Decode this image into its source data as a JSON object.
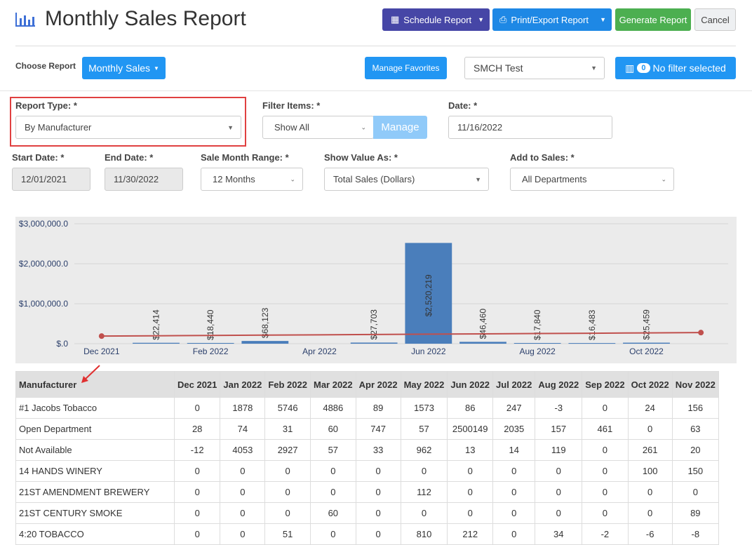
{
  "header": {
    "title": "Monthly Sales Report",
    "buttons": {
      "schedule": "Schedule Report",
      "print": "Print/Export Report",
      "generate": "Generate Report",
      "cancel": "Cancel"
    }
  },
  "toolbar": {
    "choose_label": "Choose Report",
    "report": "Monthly Sales",
    "favorites": "Manage Favorites",
    "store": "SMCH Test",
    "filter_count": "0",
    "filter_text": "No filter selected"
  },
  "filters": {
    "report_type": {
      "label": "Report Type: *",
      "value": "By Manufacturer"
    },
    "filter_items": {
      "label": "Filter Items: *",
      "value": "Show All",
      "button": "Manage"
    },
    "date": {
      "label": "Date: *",
      "value": "11/16/2022"
    },
    "start_date": {
      "label": "Start Date: *",
      "value": "12/01/2021"
    },
    "end_date": {
      "label": "End Date: *",
      "value": "11/30/2022"
    },
    "month_range": {
      "label": "Sale Month Range: *",
      "value": "12 Months"
    },
    "show_value": {
      "label": "Show Value As: *",
      "value": "Total Sales (Dollars)"
    },
    "add_to_sales": {
      "label": "Add to Sales: *",
      "value": "All Departments"
    }
  },
  "chart_data": {
    "type": "bar",
    "categories": [
      "Dec 2021",
      null,
      "Feb 2022",
      null,
      "Apr 2022",
      null,
      "Jun 2022",
      null,
      "Aug 2022",
      null,
      "Oct 2022",
      null
    ],
    "values": [
      null,
      22414,
      18440,
      68123,
      null,
      27703,
      2520219,
      46460,
      17840,
      16483,
      25459,
      null
    ],
    "value_labels": [
      null,
      "$22,414",
      "$18,440",
      "$68,123",
      null,
      "$27,703",
      "$2,520,219",
      "$46,460",
      "$17,840",
      "$16,483",
      "$25,459",
      null
    ],
    "color": "#4a7ebb",
    "trend": {
      "color": "#c0504d",
      "values": [
        190000,
        198000,
        206000,
        214000,
        222000,
        230000,
        238000,
        246000,
        254000,
        262000,
        270000,
        278000
      ]
    },
    "ylim": [
      0,
      3000000
    ],
    "yticks": [
      {
        "value": 0,
        "label": "$.0"
      },
      {
        "value": 1000000,
        "label": "$1,000,000.0"
      },
      {
        "value": 2000000,
        "label": "$2,000,000.0"
      },
      {
        "value": 3000000,
        "label": "$3,000,000.0"
      }
    ],
    "grid": true
  },
  "table": {
    "columns": [
      "Manufacturer",
      "Dec 2021",
      "Jan 2022",
      "Feb 2022",
      "Mar 2022",
      "Apr 2022",
      "May 2022",
      "Jun 2022",
      "Jul 2022",
      "Aug 2022",
      "Sep 2022",
      "Oct 2022",
      "Nov 2022"
    ],
    "rows": [
      [
        "#1 Jacobs Tobacco",
        0,
        1878,
        5746,
        4886,
        89,
        1573,
        86,
        247,
        -3,
        0,
        24,
        156
      ],
      [
        "Open Department",
        28,
        74,
        31,
        60,
        747,
        57,
        2500149,
        2035,
        157,
        461,
        0,
        63
      ],
      [
        "Not Available",
        -12,
        4053,
        2927,
        57,
        33,
        962,
        13,
        14,
        119,
        0,
        261,
        20
      ],
      [
        "14 HANDS WINERY",
        0,
        0,
        0,
        0,
        0,
        0,
        0,
        0,
        0,
        0,
        100,
        150
      ],
      [
        "21ST AMENDMENT BREWERY",
        0,
        0,
        0,
        0,
        0,
        112,
        0,
        0,
        0,
        0,
        0,
        0
      ],
      [
        "21ST CENTURY SMOKE",
        0,
        0,
        0,
        60,
        0,
        0,
        0,
        0,
        0,
        0,
        0,
        89
      ],
      [
        "4:20 TOBACCO",
        0,
        0,
        51,
        0,
        0,
        810,
        212,
        0,
        34,
        -2,
        -6,
        -8
      ]
    ]
  }
}
